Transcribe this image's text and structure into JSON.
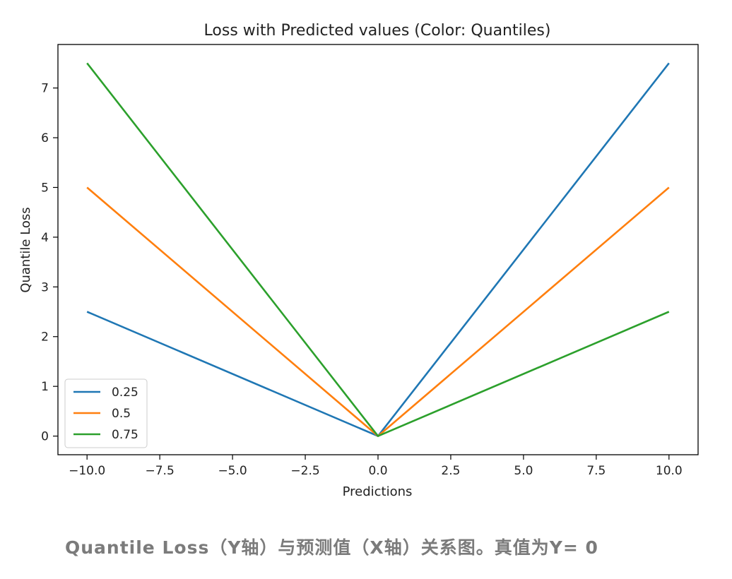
{
  "chart_data": {
    "type": "line",
    "title": "Loss with Predicted values (Color: Quantiles)",
    "xlabel": "Predictions",
    "ylabel": "Quantile Loss",
    "xlim": [
      -11.0,
      11.0
    ],
    "ylim": [
      -0.375,
      7.875
    ],
    "xticks": [
      -10.0,
      -7.5,
      -5.0,
      -2.5,
      0.0,
      2.5,
      5.0,
      7.5,
      10.0
    ],
    "xtick_labels": [
      "−10.0",
      "−7.5",
      "−5.0",
      "−2.5",
      "0.0",
      "2.5",
      "5.0",
      "7.5",
      "10.0"
    ],
    "yticks": [
      0,
      1,
      2,
      3,
      4,
      5,
      6,
      7
    ],
    "ytick_labels": [
      "0",
      "1",
      "2",
      "3",
      "4",
      "5",
      "6",
      "7"
    ],
    "grid": false,
    "legend_position": "lower-left",
    "series": [
      {
        "name": "0.25",
        "color": "#1f77b4",
        "x": [
          -10,
          0,
          10
        ],
        "y": [
          2.5,
          0,
          7.5
        ]
      },
      {
        "name": "0.5",
        "color": "#ff7f0e",
        "x": [
          -10,
          0,
          10
        ],
        "y": [
          5.0,
          0,
          5.0
        ]
      },
      {
        "name": "0.75",
        "color": "#2ca02c",
        "x": [
          -10,
          0,
          10
        ],
        "y": [
          7.5,
          0,
          2.5
        ]
      }
    ]
  },
  "caption": "Quantile Loss（Y轴）与预测值（X轴）关系图。真值为Y= 0"
}
